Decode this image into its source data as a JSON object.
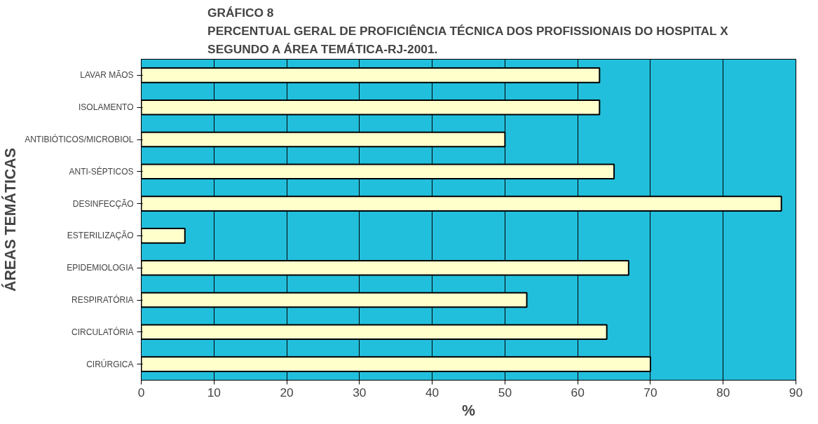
{
  "chart_data": {
    "type": "bar",
    "orientation": "horizontal",
    "title": "GRÁFICO 8\nPERCENTUAL GERAL DE PROFICIÊNCIA TÉCNICA DOS PROFISSIONAIS DO HOSPITAL X\nSEGUNDO A ÁREA TEMÁTICA-RJ-2001.",
    "xlabel": "%",
    "ylabel": "ÁREAS TEMÁTICAS",
    "categories": [
      "LAVAR MÃOS",
      "ISOLAMENTO",
      "ANTIBIÓTICOS/MICROBIOL",
      "ANTI-SÉPTICOS",
      "DESINFECÇÃO",
      "ESTERILIZAÇÃO",
      "EPIDEMIOLOGIA",
      "RESPIRATÓRIA",
      "CIRCULATÓRIA",
      "CIRÚRGICA"
    ],
    "values": [
      63,
      63,
      50,
      65,
      88,
      6,
      67,
      53,
      64,
      70
    ],
    "color": "#ffffcc",
    "xlim": [
      0,
      90
    ],
    "xticks": [
      0,
      10,
      20,
      30,
      40,
      50,
      60,
      70,
      80,
      90
    ],
    "grid": "x"
  }
}
